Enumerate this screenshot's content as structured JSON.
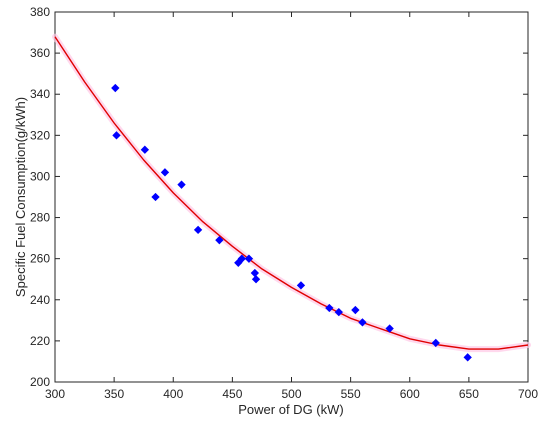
{
  "chart_data": {
    "type": "scatter",
    "title": "",
    "xlabel": "Power of DG (kW)",
    "ylabel": "Specific Fuel Consumption(g/kWh)",
    "xlim": [
      300,
      700
    ],
    "ylim": [
      200,
      380
    ],
    "xticks": [
      300,
      350,
      400,
      450,
      500,
      550,
      600,
      650,
      700
    ],
    "yticks": [
      200,
      220,
      240,
      260,
      280,
      300,
      320,
      340,
      360,
      380
    ],
    "grid": false,
    "legend": "none",
    "series": [
      {
        "kind": "scatter",
        "color": "#0000ff",
        "marker": "diamond",
        "points": [
          [
            351,
            343
          ],
          [
            352,
            320
          ],
          [
            376,
            313
          ],
          [
            385,
            290
          ],
          [
            393,
            302
          ],
          [
            407,
            296
          ],
          [
            421,
            274
          ],
          [
            439,
            269
          ],
          [
            455,
            258
          ],
          [
            458,
            260
          ],
          [
            464,
            260
          ],
          [
            469,
            253
          ],
          [
            470,
            250
          ],
          [
            508,
            247
          ],
          [
            532,
            236
          ],
          [
            540,
            234
          ],
          [
            554,
            235
          ],
          [
            560,
            229
          ],
          [
            583,
            226
          ],
          [
            622,
            219
          ],
          [
            649,
            212
          ]
        ]
      },
      {
        "kind": "line",
        "color": "#e00000",
        "fit": "quadratic",
        "x": [
          300,
          325,
          350,
          375,
          400,
          425,
          450,
          475,
          500,
          525,
          550,
          575,
          600,
          625,
          650,
          675,
          700
        ],
        "y": [
          368,
          346,
          326,
          308,
          292,
          278,
          266,
          255,
          246,
          238,
          231,
          226,
          221,
          218,
          216,
          216,
          218
        ]
      }
    ]
  }
}
